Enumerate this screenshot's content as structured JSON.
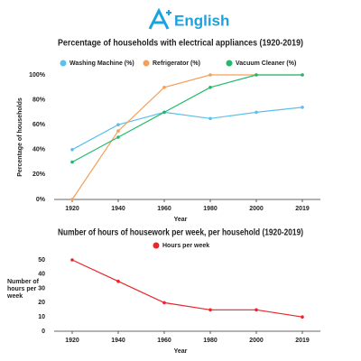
{
  "header": {
    "logo": "English"
  },
  "chart_data": [
    {
      "type": "line",
      "title": "Percentage of households with electrical appliances (1920-2019)",
      "categories": [
        "1920",
        "1940",
        "1960",
        "1980",
        "2000",
        "2019"
      ],
      "series": [
        {
          "name": "Washing Machine (%)",
          "color": "#5bc0eb",
          "values": [
            40,
            60,
            70,
            65,
            70,
            74
          ]
        },
        {
          "name": "Refrigerator (%)",
          "color": "#f4a05a",
          "values": [
            0,
            55,
            90,
            100,
            100,
            100
          ]
        },
        {
          "name": "Vacuum Cleaner (%)",
          "color": "#21b96b",
          "values": [
            30,
            50,
            70,
            90,
            100,
            100
          ]
        }
      ],
      "ylim": [
        0,
        100
      ],
      "yticks": [
        {
          "value": 0,
          "label": "0%"
        },
        {
          "value": 20,
          "label": "20%"
        },
        {
          "value": 40,
          "label": "40%"
        },
        {
          "value": 60,
          "label": "60%"
        },
        {
          "value": 80,
          "label": "80%"
        },
        {
          "value": 100,
          "label": "100%"
        }
      ],
      "x_label": "Year",
      "y_label": "Percentage of households",
      "grid": false
    },
    {
      "type": "line",
      "title": "Number of hours of housework per week, per household (1920-2019)",
      "categories": [
        "1920",
        "1940",
        "1960",
        "1980",
        "2000",
        "2019"
      ],
      "series": [
        {
          "name": "Hours per week",
          "color": "#e8262b",
          "values": [
            50,
            35,
            20,
            15,
            15,
            10
          ]
        }
      ],
      "ylim": [
        0,
        50
      ],
      "yticks": [
        0,
        10,
        20,
        30,
        40,
        50
      ],
      "x_label": "Year",
      "y_label": "Number of hours per week",
      "grid": false
    }
  ]
}
